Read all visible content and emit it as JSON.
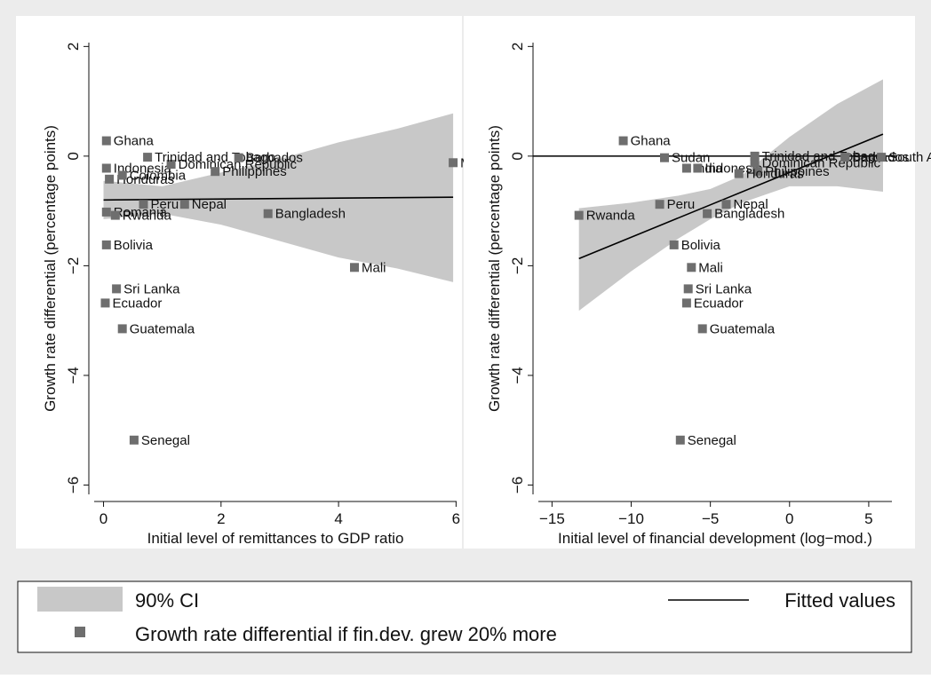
{
  "chart_data": [
    {
      "type": "scatter",
      "xlabel": "Initial level of remittances to GDP ratio",
      "ylabel": "Growth rate differential (percentage points)",
      "xlim": [
        -0.25,
        6.1
      ],
      "ylim": [
        -6.3,
        2.2
      ],
      "xticks": [
        0,
        2,
        4,
        6
      ],
      "yticks": [
        2,
        0,
        -2,
        -4,
        -6
      ],
      "x_tick_labels": [
        "0",
        "2",
        "4",
        "6"
      ],
      "y_tick_labels": [
        "2",
        "0",
        "−2",
        "−4",
        "−6"
      ],
      "zero_line": false,
      "points": [
        {
          "label": "Ghana",
          "x": 0.05,
          "y": 0.28
        },
        {
          "label": "Indonesia",
          "x": 0.05,
          "y": -0.22
        },
        {
          "label": "Honduras",
          "x": 0.1,
          "y": -0.42
        },
        {
          "label": "Colombia",
          "x": 0.32,
          "y": -0.35
        },
        {
          "label": "Dominican Republic",
          "x": 1.15,
          "y": -0.15
        },
        {
          "label": "Trinidad and Tobago",
          "x": 0.75,
          "y": -0.02
        },
        {
          "label": "Barbados",
          "x": 2.3,
          "y": -0.03
        },
        {
          "label": "Philippines",
          "x": 1.9,
          "y": -0.28
        },
        {
          "label": "Morocco",
          "x": 5.95,
          "y": -0.12
        },
        {
          "label": "Peru",
          "x": 0.68,
          "y": -0.88
        },
        {
          "label": "Nepal",
          "x": 1.38,
          "y": -0.88
        },
        {
          "label": "Romania",
          "x": 0.05,
          "y": -1.02
        },
        {
          "label": "Rwanda",
          "x": 0.2,
          "y": -1.08
        },
        {
          "label": "Bangladesh",
          "x": 2.8,
          "y": -1.05
        },
        {
          "label": "Bolivia",
          "x": 0.05,
          "y": -1.62
        },
        {
          "label": "Mali",
          "x": 4.27,
          "y": -2.03
        },
        {
          "label": "Sri Lanka",
          "x": 0.22,
          "y": -2.42
        },
        {
          "label": "Ecuador",
          "x": 0.03,
          "y": -2.68
        },
        {
          "label": "Guatemala",
          "x": 0.32,
          "y": -3.15
        },
        {
          "label": "Senegal",
          "x": 0.52,
          "y": -5.18
        }
      ],
      "fitted": {
        "x": [
          0,
          5.95
        ],
        "y": [
          -0.8,
          -0.75
        ]
      },
      "ci_lower": [
        {
          "x": 0,
          "y": -1.15
        },
        {
          "x": 1,
          "y": -1.05
        },
        {
          "x": 2,
          "y": -1.25
        },
        {
          "x": 3,
          "y": -1.55
        },
        {
          "x": 4,
          "y": -1.85
        },
        {
          "x": 5,
          "y": -2.05
        },
        {
          "x": 5.95,
          "y": -2.3
        }
      ],
      "ci_upper": [
        {
          "x": 0,
          "y": -0.45
        },
        {
          "x": 1,
          "y": -0.55
        },
        {
          "x": 2,
          "y": -0.3
        },
        {
          "x": 3,
          "y": -0.05
        },
        {
          "x": 4,
          "y": 0.25
        },
        {
          "x": 5,
          "y": 0.5
        },
        {
          "x": 5.95,
          "y": 0.78
        }
      ]
    },
    {
      "type": "scatter",
      "xlabel": "Initial level of financial development (log−mod.)",
      "ylabel": "Growth rate differential (percentage points)",
      "xlim": [
        -16.2,
        6.8
      ],
      "ylim": [
        -6.3,
        2.2
      ],
      "xticks": [
        -15,
        -10,
        -5,
        0,
        5
      ],
      "yticks": [
        2,
        0,
        -2,
        -4,
        -6
      ],
      "x_tick_labels": [
        "−15",
        "−10",
        "−5",
        "0",
        "5"
      ],
      "y_tick_labels": [
        "2",
        "0",
        "−2",
        "−4",
        "−6"
      ],
      "zero_line": true,
      "points": [
        {
          "label": "Ghana",
          "x": -10.5,
          "y": 0.28
        },
        {
          "label": "Sudan",
          "x": -7.9,
          "y": -0.03
        },
        {
          "label": "India",
          "x": -6.5,
          "y": -0.22
        },
        {
          "label": "Indonesia",
          "x": -5.8,
          "y": -0.22
        },
        {
          "label": "Dominican Republic",
          "x": -2.2,
          "y": -0.12
        },
        {
          "label": "Philippines",
          "x": -2.0,
          "y": -0.28
        },
        {
          "label": "Honduras",
          "x": -3.2,
          "y": -0.32
        },
        {
          "label": "Trinidad and Tobago",
          "x": -2.2,
          "y": 0.0
        },
        {
          "label": "Barbados",
          "x": 3.5,
          "y": -0.02
        },
        {
          "label": "South Africa",
          "x": 5.8,
          "y": -0.02
        },
        {
          "label": "Rwanda",
          "x": -13.3,
          "y": -1.08
        },
        {
          "label": "Peru",
          "x": -8.2,
          "y": -0.88
        },
        {
          "label": "Nepal",
          "x": -4.0,
          "y": -0.88
        },
        {
          "label": "Bangladesh",
          "x": -5.2,
          "y": -1.05
        },
        {
          "label": "Bolivia",
          "x": -7.3,
          "y": -1.62
        },
        {
          "label": "Mali",
          "x": -6.2,
          "y": -2.03
        },
        {
          "label": "Sri Lanka",
          "x": -6.4,
          "y": -2.42
        },
        {
          "label": "Ecuador",
          "x": -6.5,
          "y": -2.68
        },
        {
          "label": "Guatemala",
          "x": -5.5,
          "y": -3.15
        },
        {
          "label": "Senegal",
          "x": -6.9,
          "y": -5.18
        }
      ],
      "fitted": {
        "x": [
          -13.3,
          5.9
        ],
        "y": [
          -1.87,
          0.4
        ]
      },
      "ci_lower": [
        {
          "x": -13.3,
          "y": -2.82
        },
        {
          "x": -10,
          "y": -2.1
        },
        {
          "x": -7,
          "y": -1.5
        },
        {
          "x": -5,
          "y": -1.15
        },
        {
          "x": -3,
          "y": -0.85
        },
        {
          "x": 0,
          "y": -0.55
        },
        {
          "x": 3,
          "y": -0.55
        },
        {
          "x": 5.9,
          "y": -0.65
        }
      ],
      "ci_upper": [
        {
          "x": -13.3,
          "y": -0.95
        },
        {
          "x": -10,
          "y": -0.85
        },
        {
          "x": -7,
          "y": -0.72
        },
        {
          "x": -5,
          "y": -0.6
        },
        {
          "x": -3,
          "y": -0.35
        },
        {
          "x": 0,
          "y": 0.35
        },
        {
          "x": 3,
          "y": 0.95
        },
        {
          "x": 5.9,
          "y": 1.4
        }
      ]
    }
  ],
  "legend": {
    "ci_label": "90% CI",
    "fitted_label": "Fitted values",
    "points_label": "Growth rate differential if fin.dev. grew 20% more"
  },
  "colors": {
    "background": "#ececec",
    "plot_background": "#ffffff",
    "ci_fill": "#c8c8c8",
    "marker": "#6e6e6e",
    "line": "#000000"
  }
}
